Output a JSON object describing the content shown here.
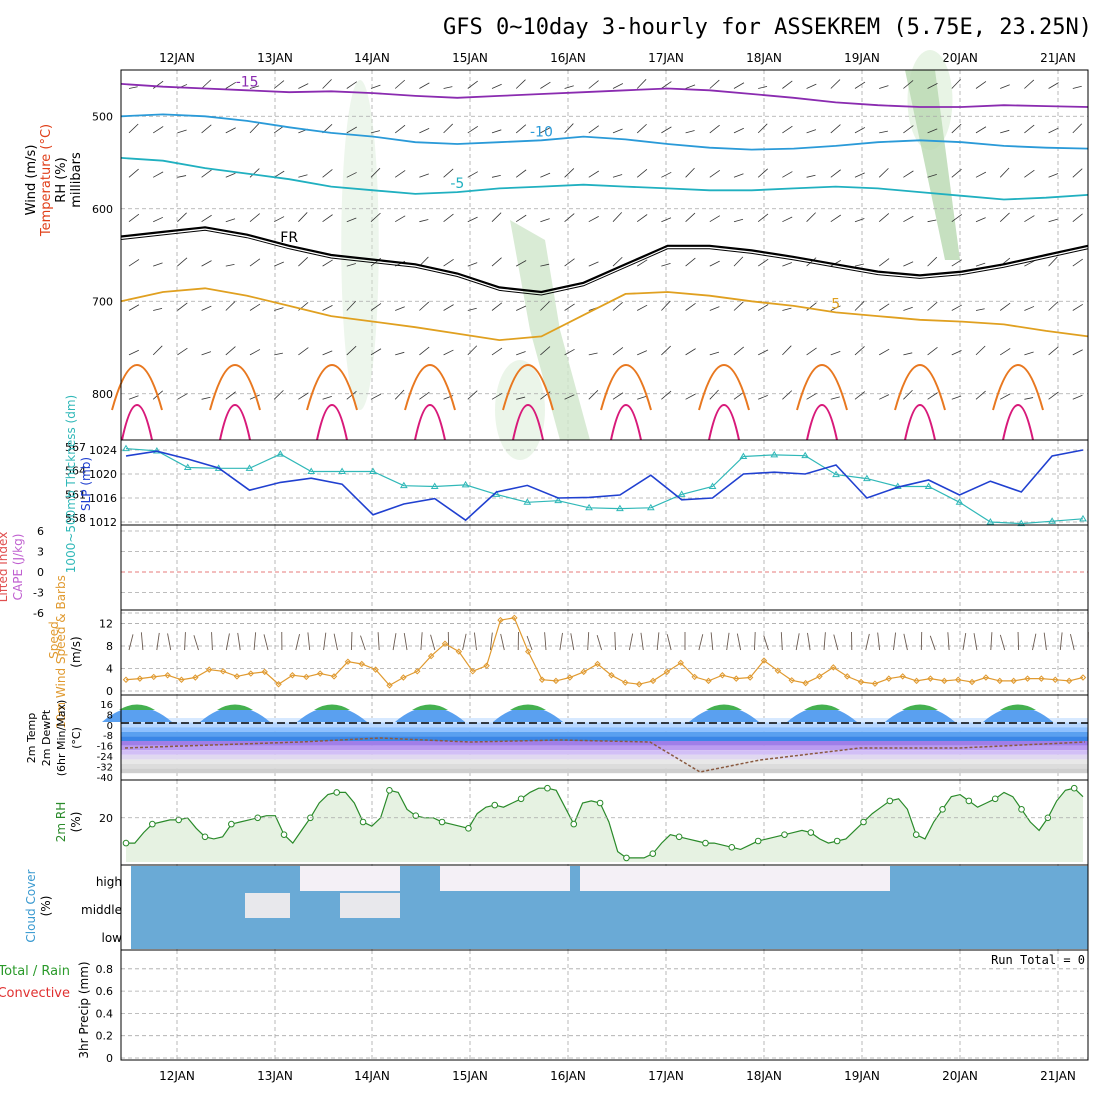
{
  "title": "GFS 0~10day 3-hourly for ASSEKREM (5.75E, 23.25N)",
  "days": [
    "12JAN",
    "13JAN",
    "14JAN",
    "15JAN",
    "16JAN",
    "17JAN",
    "18JAN",
    "19JAN",
    "20JAN",
    "21JAN"
  ],
  "run_total": "Run Total = 0",
  "colors": {
    "frame": "#000000",
    "grid": "#a0a0a0",
    "cloud": "#6aaad6",
    "rh_fill": "#dcecd8",
    "rh_line": "#2a8a2a"
  },
  "chart_data": [
    {
      "type": "line",
      "id": "upper",
      "ylabels": [
        "Wind (m/s)",
        "Temperature (°C)",
        "RH (%)",
        "millibars"
      ],
      "yticks": [
        500,
        600,
        700,
        800
      ],
      "contours": [
        {
          "label": "-15",
          "color": "#8a2bb0",
          "values": [
            465,
            468,
            470,
            472,
            474,
            473,
            475,
            478,
            480,
            478,
            476,
            474,
            472,
            470,
            472,
            476,
            480,
            485,
            488,
            490,
            490,
            488,
            489,
            490
          ]
        },
        {
          "label": "-10",
          "color": "#2a9ad8",
          "values": [
            500,
            498,
            500,
            505,
            512,
            518,
            522,
            528,
            530,
            528,
            526,
            522,
            525,
            530,
            534,
            536,
            535,
            532,
            528,
            526,
            528,
            532,
            534,
            535
          ]
        },
        {
          "label": "-5",
          "color": "#20b0c0",
          "values": [
            545,
            548,
            556,
            562,
            568,
            576,
            580,
            584,
            582,
            578,
            576,
            574,
            576,
            578,
            580,
            580,
            578,
            576,
            578,
            582,
            586,
            590,
            588,
            585
          ]
        },
        {
          "label": "FR",
          "color": "#000000",
          "values": [
            630,
            625,
            620,
            628,
            640,
            650,
            655,
            660,
            670,
            685,
            690,
            680,
            660,
            640,
            640,
            645,
            652,
            660,
            668,
            672,
            668,
            660,
            650,
            640
          ]
        },
        {
          "label": "5",
          "color": "#e0a020",
          "values": [
            700,
            690,
            686,
            694,
            705,
            716,
            722,
            728,
            735,
            742,
            738,
            715,
            692,
            690,
            694,
            700,
            705,
            712,
            716,
            720,
            722,
            725,
            732,
            738
          ]
        }
      ]
    },
    {
      "type": "line",
      "id": "slp",
      "ylabels": [
        "1000~500mb Thickness (dm)",
        "SLP (mb)"
      ],
      "left_ticks": [
        "567",
        "564",
        "561",
        "558"
      ],
      "right_ticks": [
        "1024",
        "1020",
        "1016",
        "1012"
      ],
      "series": [
        {
          "name": "Thickness (dm)",
          "color": "#30b8b8",
          "values": [
            566.8,
            566.5,
            564.4,
            564.3,
            564.3,
            566.1,
            563.9,
            563.9,
            563.9,
            562.1,
            562.0,
            562.2,
            561.0,
            560.0,
            560.2,
            559.3,
            559.2,
            559.3,
            561.0,
            562.0,
            565.8,
            566.0,
            565.9,
            563.5,
            563.0,
            562.0,
            562.0,
            560.0,
            557.5,
            557.3,
            557.6,
            557.9
          ]
        },
        {
          "name": "SLP (mb)",
          "color": "#2040d0",
          "values": [
            1023.0,
            1023.8,
            1022.5,
            1021.0,
            1017.3,
            1018.6,
            1019.3,
            1018.3,
            1013.2,
            1015.0,
            1015.9,
            1012.3,
            1017.0,
            1018.1,
            1016.0,
            1016.1,
            1016.5,
            1019.8,
            1015.7,
            1016.0,
            1020.0,
            1020.3,
            1020.0,
            1021.5,
            1016.0,
            1017.8,
            1019.0,
            1016.5,
            1018.8,
            1017.0,
            1023.0,
            1024.0
          ]
        }
      ]
    },
    {
      "type": "line",
      "id": "cape",
      "ylabels": [
        "Lifted Index",
        "CAPE (J/kg)"
      ],
      "yticks": [
        "6",
        "3",
        "0",
        "-3",
        "-6"
      ]
    },
    {
      "type": "line",
      "id": "wind",
      "ylabels": [
        "10m Wind Speed & Barbs",
        "(m/s)"
      ],
      "yticks": [
        0,
        4,
        8,
        12
      ],
      "series": [
        {
          "name": "10m Wind Speed",
          "color": "#e09a30",
          "values": [
            2.0,
            2.2,
            2.5,
            2.8,
            2.0,
            2.4,
            3.8,
            3.5,
            2.6,
            3.1,
            3.4,
            1.2,
            2.8,
            2.5,
            3.1,
            2.6,
            5.2,
            4.8,
            3.8,
            1.0,
            2.4,
            3.5,
            6.2,
            8.4,
            7.0,
            3.5,
            4.5,
            12.6,
            13.0,
            7.0,
            2.0,
            1.8,
            2.4,
            3.4,
            4.8,
            2.8,
            1.5,
            1.2,
            1.8,
            3.4,
            5.0,
            2.5,
            1.8,
            2.8,
            2.2,
            2.4,
            5.4,
            3.6,
            1.9,
            1.4,
            2.6,
            4.2,
            2.6,
            1.6,
            1.3,
            2.2,
            2.6,
            1.8,
            2.2,
            1.8,
            2.0,
            1.6,
            2.4,
            1.8,
            1.8,
            2.2,
            2.2,
            2.0,
            1.8,
            2.4
          ]
        }
      ]
    },
    {
      "type": "line",
      "id": "temp",
      "ylabels": [
        "2m Temp",
        "2m DewPt",
        "(6hr Min/Max)",
        "(°C)"
      ],
      "yticks": [
        "16",
        "8",
        "0",
        "-8",
        "-16",
        "-24",
        "-32",
        "-40"
      ]
    },
    {
      "type": "area",
      "id": "rh",
      "ylabels": [
        "2m RH",
        "(%)"
      ],
      "yticks": [
        "20"
      ],
      "series": [
        {
          "name": "2m RH",
          "color": "#2a8a2a",
          "values": [
            8,
            8,
            13,
            17,
            18,
            19,
            19,
            20,
            15,
            11,
            10,
            11,
            17,
            18,
            19,
            20,
            21,
            21,
            12,
            8,
            14,
            20,
            27,
            31,
            32,
            32,
            27,
            18,
            16,
            20,
            33,
            32,
            24,
            21,
            20,
            20,
            18,
            17,
            16,
            15,
            22,
            25,
            26,
            25,
            27,
            29,
            32,
            34,
            34,
            33,
            25,
            17,
            27,
            28,
            27,
            18,
            4,
            1,
            1,
            1,
            3,
            8,
            12,
            11,
            10,
            9,
            8,
            8,
            7,
            6,
            5,
            7,
            9,
            10,
            11,
            12,
            13,
            14,
            13,
            10,
            8,
            9,
            10,
            14,
            18,
            22,
            25,
            28,
            29,
            24,
            12,
            10,
            18,
            24,
            30,
            31,
            28,
            25,
            27,
            29,
            32,
            30,
            24,
            18,
            14,
            20,
            28,
            33,
            34,
            30
          ]
        }
      ]
    },
    {
      "type": "heatmap",
      "id": "cloud",
      "ylabels": [
        "Cloud Cover",
        "(%)"
      ],
      "yticks": [
        "high",
        "middle",
        "low"
      ]
    },
    {
      "type": "bar",
      "id": "precip",
      "ylabels": [
        "Total / Rain",
        "Convective",
        "3hr Precip (mm)"
      ],
      "yticks": [
        "0",
        "0.2",
        "0.4",
        "0.6",
        "0.8"
      ]
    }
  ]
}
